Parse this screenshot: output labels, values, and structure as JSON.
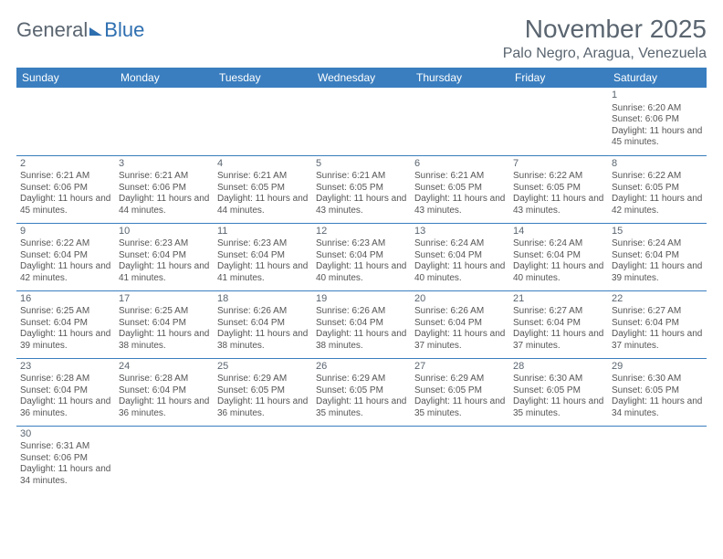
{
  "logo": {
    "word1": "General",
    "word2": "Blue"
  },
  "title": "November 2025",
  "location": "Palo Negro, Aragua, Venezuela",
  "colors": {
    "header_bg": "#3a7ebf",
    "header_text": "#ffffff",
    "border": "#3a7ebf",
    "body_text": "#555555",
    "title_text": "#5a6570",
    "logo_gray": "#5a6570",
    "logo_blue": "#2e6fb0",
    "background": "#ffffff"
  },
  "weekdays": [
    "Sunday",
    "Monday",
    "Tuesday",
    "Wednesday",
    "Thursday",
    "Friday",
    "Saturday"
  ],
  "weeks": [
    [
      null,
      null,
      null,
      null,
      null,
      null,
      {
        "n": "1",
        "sr": "Sunrise: 6:20 AM",
        "ss": "Sunset: 6:06 PM",
        "dl": "Daylight: 11 hours and 45 minutes."
      }
    ],
    [
      {
        "n": "2",
        "sr": "Sunrise: 6:21 AM",
        "ss": "Sunset: 6:06 PM",
        "dl": "Daylight: 11 hours and 45 minutes."
      },
      {
        "n": "3",
        "sr": "Sunrise: 6:21 AM",
        "ss": "Sunset: 6:06 PM",
        "dl": "Daylight: 11 hours and 44 minutes."
      },
      {
        "n": "4",
        "sr": "Sunrise: 6:21 AM",
        "ss": "Sunset: 6:05 PM",
        "dl": "Daylight: 11 hours and 44 minutes."
      },
      {
        "n": "5",
        "sr": "Sunrise: 6:21 AM",
        "ss": "Sunset: 6:05 PM",
        "dl": "Daylight: 11 hours and 43 minutes."
      },
      {
        "n": "6",
        "sr": "Sunrise: 6:21 AM",
        "ss": "Sunset: 6:05 PM",
        "dl": "Daylight: 11 hours and 43 minutes."
      },
      {
        "n": "7",
        "sr": "Sunrise: 6:22 AM",
        "ss": "Sunset: 6:05 PM",
        "dl": "Daylight: 11 hours and 43 minutes."
      },
      {
        "n": "8",
        "sr": "Sunrise: 6:22 AM",
        "ss": "Sunset: 6:05 PM",
        "dl": "Daylight: 11 hours and 42 minutes."
      }
    ],
    [
      {
        "n": "9",
        "sr": "Sunrise: 6:22 AM",
        "ss": "Sunset: 6:04 PM",
        "dl": "Daylight: 11 hours and 42 minutes."
      },
      {
        "n": "10",
        "sr": "Sunrise: 6:23 AM",
        "ss": "Sunset: 6:04 PM",
        "dl": "Daylight: 11 hours and 41 minutes."
      },
      {
        "n": "11",
        "sr": "Sunrise: 6:23 AM",
        "ss": "Sunset: 6:04 PM",
        "dl": "Daylight: 11 hours and 41 minutes."
      },
      {
        "n": "12",
        "sr": "Sunrise: 6:23 AM",
        "ss": "Sunset: 6:04 PM",
        "dl": "Daylight: 11 hours and 40 minutes."
      },
      {
        "n": "13",
        "sr": "Sunrise: 6:24 AM",
        "ss": "Sunset: 6:04 PM",
        "dl": "Daylight: 11 hours and 40 minutes."
      },
      {
        "n": "14",
        "sr": "Sunrise: 6:24 AM",
        "ss": "Sunset: 6:04 PM",
        "dl": "Daylight: 11 hours and 40 minutes."
      },
      {
        "n": "15",
        "sr": "Sunrise: 6:24 AM",
        "ss": "Sunset: 6:04 PM",
        "dl": "Daylight: 11 hours and 39 minutes."
      }
    ],
    [
      {
        "n": "16",
        "sr": "Sunrise: 6:25 AM",
        "ss": "Sunset: 6:04 PM",
        "dl": "Daylight: 11 hours and 39 minutes."
      },
      {
        "n": "17",
        "sr": "Sunrise: 6:25 AM",
        "ss": "Sunset: 6:04 PM",
        "dl": "Daylight: 11 hours and 38 minutes."
      },
      {
        "n": "18",
        "sr": "Sunrise: 6:26 AM",
        "ss": "Sunset: 6:04 PM",
        "dl": "Daylight: 11 hours and 38 minutes."
      },
      {
        "n": "19",
        "sr": "Sunrise: 6:26 AM",
        "ss": "Sunset: 6:04 PM",
        "dl": "Daylight: 11 hours and 38 minutes."
      },
      {
        "n": "20",
        "sr": "Sunrise: 6:26 AM",
        "ss": "Sunset: 6:04 PM",
        "dl": "Daylight: 11 hours and 37 minutes."
      },
      {
        "n": "21",
        "sr": "Sunrise: 6:27 AM",
        "ss": "Sunset: 6:04 PM",
        "dl": "Daylight: 11 hours and 37 minutes."
      },
      {
        "n": "22",
        "sr": "Sunrise: 6:27 AM",
        "ss": "Sunset: 6:04 PM",
        "dl": "Daylight: 11 hours and 37 minutes."
      }
    ],
    [
      {
        "n": "23",
        "sr": "Sunrise: 6:28 AM",
        "ss": "Sunset: 6:04 PM",
        "dl": "Daylight: 11 hours and 36 minutes."
      },
      {
        "n": "24",
        "sr": "Sunrise: 6:28 AM",
        "ss": "Sunset: 6:04 PM",
        "dl": "Daylight: 11 hours and 36 minutes."
      },
      {
        "n": "25",
        "sr": "Sunrise: 6:29 AM",
        "ss": "Sunset: 6:05 PM",
        "dl": "Daylight: 11 hours and 36 minutes."
      },
      {
        "n": "26",
        "sr": "Sunrise: 6:29 AM",
        "ss": "Sunset: 6:05 PM",
        "dl": "Daylight: 11 hours and 35 minutes."
      },
      {
        "n": "27",
        "sr": "Sunrise: 6:29 AM",
        "ss": "Sunset: 6:05 PM",
        "dl": "Daylight: 11 hours and 35 minutes."
      },
      {
        "n": "28",
        "sr": "Sunrise: 6:30 AM",
        "ss": "Sunset: 6:05 PM",
        "dl": "Daylight: 11 hours and 35 minutes."
      },
      {
        "n": "29",
        "sr": "Sunrise: 6:30 AM",
        "ss": "Sunset: 6:05 PM",
        "dl": "Daylight: 11 hours and 34 minutes."
      }
    ],
    [
      {
        "n": "30",
        "sr": "Sunrise: 6:31 AM",
        "ss": "Sunset: 6:06 PM",
        "dl": "Daylight: 11 hours and 34 minutes."
      },
      null,
      null,
      null,
      null,
      null,
      null
    ]
  ]
}
